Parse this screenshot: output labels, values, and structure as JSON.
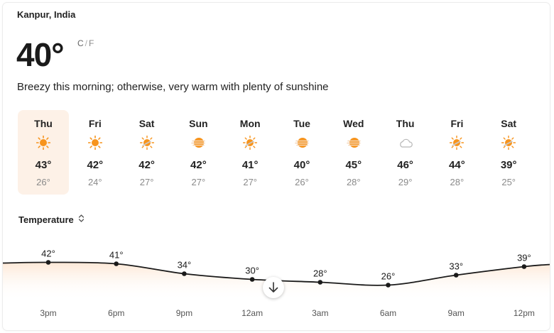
{
  "location": "Kanpur, India",
  "current": {
    "temp": "40°",
    "unit_c": "C",
    "unit_sep": "/",
    "unit_f": "F",
    "summary": "Breezy this morning; otherwise, very warm with plenty of sunshine"
  },
  "days": [
    {
      "name": "Thu",
      "hi": "43°",
      "lo": "26°",
      "icon": "sun-icon",
      "selected": true
    },
    {
      "name": "Fri",
      "hi": "42°",
      "lo": "24°",
      "icon": "sun-icon"
    },
    {
      "name": "Sat",
      "hi": "42°",
      "lo": "27°",
      "icon": "sun-wind-icon"
    },
    {
      "name": "Sun",
      "hi": "42°",
      "lo": "27°",
      "icon": "hazy-sun-icon"
    },
    {
      "name": "Mon",
      "hi": "41°",
      "lo": "27°",
      "icon": "sun-wind-icon"
    },
    {
      "name": "Tue",
      "hi": "40°",
      "lo": "26°",
      "icon": "hazy-sun-icon"
    },
    {
      "name": "Wed",
      "hi": "45°",
      "lo": "28°",
      "icon": "hazy-sun-icon"
    },
    {
      "name": "Thu",
      "hi": "46°",
      "lo": "29°",
      "icon": "cloud-icon"
    },
    {
      "name": "Fri",
      "hi": "44°",
      "lo": "28°",
      "icon": "sun-wind-icon"
    },
    {
      "name": "Sat",
      "hi": "39°",
      "lo": "25°",
      "icon": "sun-wind-icon"
    }
  ],
  "temperature_selector": {
    "label": "Temperature",
    "icon": "up-down-chevron-icon"
  },
  "hourly": {
    "points": [
      {
        "time": "3pm",
        "temp": 42,
        "label": "42°"
      },
      {
        "time": "6pm",
        "temp": 41,
        "label": "41°"
      },
      {
        "time": "9pm",
        "temp": 34,
        "label": "34°"
      },
      {
        "time": "12am",
        "temp": 30,
        "label": "30°"
      },
      {
        "time": "3am",
        "temp": 28,
        "label": "28°"
      },
      {
        "time": "6am",
        "temp": 26,
        "label": "26°"
      },
      {
        "time": "9am",
        "temp": 33,
        "label": "33°"
      },
      {
        "time": "12pm",
        "temp": 39,
        "label": "39°"
      }
    ]
  },
  "colors": {
    "accent": "#f7941d",
    "selected_bg": "#fdf1e7",
    "area_fill": "#fde8d6"
  },
  "scroll_button": {
    "icon": "arrow-down-icon"
  }
}
